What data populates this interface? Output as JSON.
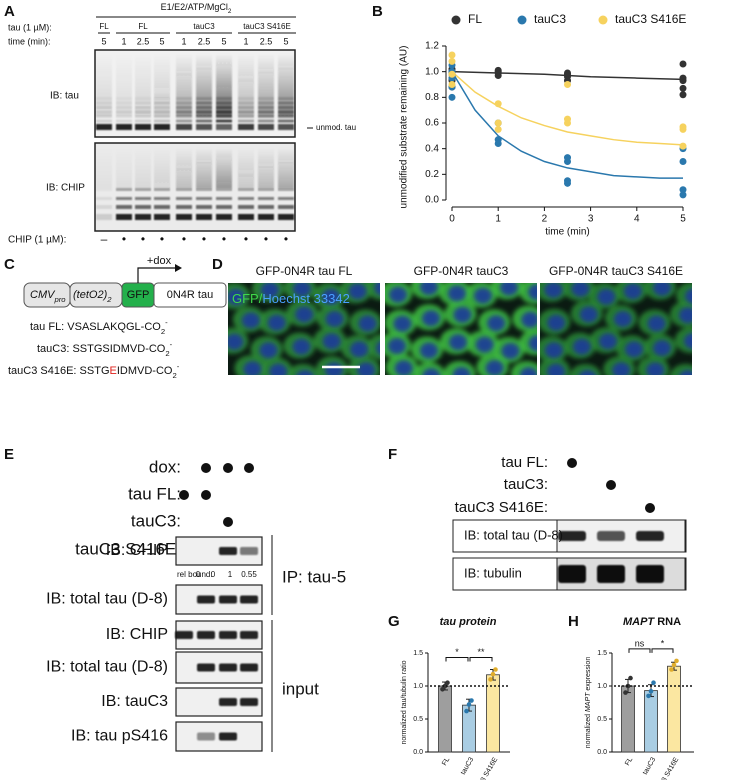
{
  "panel_labels": [
    "A",
    "B",
    "C",
    "D",
    "E",
    "F",
    "G",
    "H"
  ],
  "panel_a": {
    "header": "E1/E2/ATP/MgCl",
    "header_sub": "2",
    "row_labels": [
      "tau (1 µM):",
      "time (min):"
    ],
    "groups": [
      "FL",
      "FL",
      "tauC3",
      "tauC3 S416E"
    ],
    "times": [
      "5",
      "1",
      "2.5",
      "5",
      "1",
      "2.5",
      "5",
      "1",
      "2.5",
      "5"
    ],
    "blot_labels": [
      "IB: tau",
      "IB: CHIP"
    ],
    "band_label": "unmod. tau",
    "chip_label": "CHIP (1 µM):",
    "chip_marks": [
      "–",
      "•",
      "•",
      "•",
      "•",
      "•",
      "•",
      "•",
      "•",
      "•"
    ]
  },
  "panel_c": {
    "promoter": "CMV",
    "promoter_sub": "pro",
    "operator": "(tetO2)",
    "operator_sub": "2",
    "inducer": "+dox",
    "tag": "GFP",
    "gene": "0N4R tau",
    "sequences": [
      {
        "text": "tau FL: VSASLAKQGL-CO",
        "sub": "2",
        "sup": "-"
      },
      {
        "text": "tauC3: SSTGSIDMVD-CO",
        "sub": "2",
        "sup": "-"
      },
      {
        "text": "tauC3 S416E: SSTG",
        "mutation": "E",
        "rest": "IDMVD-CO",
        "sub": "2",
        "sup": "-"
      }
    ]
  },
  "panel_d": {
    "titles": [
      "GFP-0N4R tau FL",
      "GFP-0N4R tauC3",
      "GFP-0N4R tauC3 S416E"
    ],
    "stain_gfp": "GFP/",
    "stain_hoechst": "Hoechst 33342"
  },
  "panel_e": {
    "conditions": [
      {
        "label": "dox:",
        "marks": [
          false,
          true,
          true,
          true
        ]
      },
      {
        "label": "tau FL:",
        "marks": [
          true,
          true,
          false,
          false
        ]
      },
      {
        "label": "tauC3:",
        "marks": [
          false,
          false,
          true,
          false
        ]
      },
      {
        "label": "tauC3 S416E:",
        "marks": [
          false,
          false,
          false,
          true
        ]
      }
    ],
    "blots": [
      "IB: CHIP",
      "IB: total tau (D-8)",
      "IB: CHIP",
      "IB: total tau (D-8)",
      "IB: tauC3",
      "IB: tau pS416"
    ],
    "rel_bound_label": "rel bound:",
    "rel_bound": [
      0,
      0,
      1,
      0.55
    ],
    "brackets": [
      "IP: tau-5",
      "input"
    ]
  },
  "panel_f": {
    "conditions": [
      {
        "label": "tau FL:",
        "marks": [
          true,
          false,
          false
        ]
      },
      {
        "label": "tauC3:",
        "marks": [
          false,
          true,
          false
        ]
      },
      {
        "label": "tauC3 S416E:",
        "marks": [
          false,
          false,
          true
        ]
      }
    ],
    "blots": [
      "IB: total tau (D-8)",
      "IB: tubulin"
    ]
  },
  "chart_data": [
    {
      "type": "scatter",
      "ylabel": "unmodified substrate remaining (AU)",
      "xlabel": "time (min)",
      "xlim": [
        0,
        5
      ],
      "ylim": [
        0,
        1.2
      ],
      "xticks": [
        0,
        1,
        2,
        3,
        4,
        5
      ],
      "yticks": [
        {
          "value": 0,
          "label": "0.0"
        },
        {
          "value": 0.2,
          "label": "0.2"
        },
        {
          "value": 0.4,
          "label": "0.4"
        },
        {
          "value": 0.6,
          "label": "0.6"
        },
        {
          "value": 0.8,
          "label": "0.8"
        },
        {
          "value": 1,
          "label": "1.0"
        },
        {
          "value": 1.2,
          "label": "1.2"
        }
      ],
      "legend": "top",
      "series": [
        {
          "name": "FL",
          "color": "#333333",
          "x": [
            0,
            0,
            0,
            0,
            0,
            0,
            1,
            1,
            1,
            1,
            2.5,
            2.5,
            2.5,
            2.5,
            5,
            5,
            5,
            5,
            5
          ],
          "values": [
            0.88,
            0.93,
            0.95,
            0.98,
            1.0,
            1.02,
            0.97,
            0.99,
            1.0,
            1.01,
            0.93,
            0.96,
            0.98,
            0.99,
            0.82,
            0.87,
            0.93,
            0.95,
            1.06
          ]
        },
        {
          "name": "tauC3",
          "color": "#2a78ad",
          "x": [
            0,
            0,
            0,
            0,
            0,
            1,
            1,
            1,
            2.5,
            2.5,
            2.5,
            2.5,
            5,
            5,
            5,
            5
          ],
          "values": [
            0.8,
            0.88,
            0.95,
            1.0,
            1.05,
            0.44,
            0.47,
            0.6,
            0.13,
            0.15,
            0.3,
            0.33,
            0.04,
            0.08,
            0.3,
            0.4
          ]
        },
        {
          "name": "tauC3 S416E",
          "color": "#f6d25e",
          "x": [
            0,
            0,
            0,
            0,
            1,
            1,
            1,
            2.5,
            2.5,
            2.5,
            5,
            5,
            5
          ],
          "values": [
            0.9,
            0.98,
            1.08,
            1.13,
            0.55,
            0.6,
            0.75,
            0.6,
            0.63,
            0.9,
            0.42,
            0.55,
            0.57
          ]
        }
      ],
      "fits": [
        {
          "color": "#333333",
          "x": [
            0,
            1,
            2,
            3,
            4,
            5
          ],
          "values": [
            1.0,
            0.99,
            0.98,
            0.96,
            0.95,
            0.94
          ]
        },
        {
          "color": "#2a78ad",
          "x": [
            0,
            0.5,
            1,
            1.5,
            2,
            2.5,
            3,
            3.5,
            4,
            4.5,
            5
          ],
          "values": [
            1.0,
            0.7,
            0.5,
            0.38,
            0.3,
            0.25,
            0.22,
            0.19,
            0.18,
            0.17,
            0.17
          ]
        },
        {
          "color": "#f6d25e",
          "x": [
            0,
            0.5,
            1,
            1.5,
            2,
            2.5,
            3,
            3.5,
            4,
            4.5,
            5
          ],
          "values": [
            1.0,
            0.84,
            0.73,
            0.64,
            0.58,
            0.53,
            0.5,
            0.47,
            0.45,
            0.44,
            0.43
          ]
        }
      ]
    },
    {
      "type": "bar",
      "title": "tau protein",
      "ylabel": "normalized tau/tubulin ratio",
      "categories": [
        "FL",
        "tauC3",
        "tauC3 S416E"
      ],
      "values": [
        1.0,
        0.71,
        1.17
      ],
      "errors": [
        0.06,
        0.09,
        0.08
      ],
      "points": [
        [
          0.95,
          1.0,
          1.05
        ],
        [
          0.62,
          0.72,
          0.78
        ],
        [
          1.1,
          1.18,
          1.25
        ]
      ],
      "colors": [
        "#9e9e9e",
        "#a9cde3",
        "#fbe7a1"
      ],
      "point_colors": [
        "#333333",
        "#2a78ad",
        "#e0ad2c"
      ],
      "ylim": [
        0,
        1.5
      ],
      "yticks": [
        {
          "value": 0,
          "label": "0.0"
        },
        {
          "value": 0.5,
          "label": "0.5"
        },
        {
          "value": 1,
          "label": "1.0"
        },
        {
          "value": 1.5,
          "label": "1.5"
        }
      ],
      "reference_line": 1,
      "comparisons": [
        {
          "label": "*",
          "pair": [
            0,
            1
          ]
        },
        {
          "label": "**",
          "pair": [
            1,
            2
          ]
        }
      ]
    },
    {
      "type": "bar",
      "title": [
        "MAPT",
        " RNA"
      ],
      "ylabel": [
        "normalized ",
        "MAPT",
        " expression"
      ],
      "categories": [
        "FL",
        "tauC3",
        "tauC3 S416E"
      ],
      "values": [
        1.0,
        0.93,
        1.3
      ],
      "errors": [
        0.1,
        0.09,
        0.06
      ],
      "points": [
        [
          0.9,
          1.0,
          1.12
        ],
        [
          0.85,
          0.92,
          1.05
        ],
        [
          1.25,
          1.32,
          1.38
        ]
      ],
      "colors": [
        "#9e9e9e",
        "#a9cde3",
        "#fbe7a1"
      ],
      "point_colors": [
        "#333333",
        "#2a78ad",
        "#e0ad2c"
      ],
      "ylim": [
        0,
        1.5
      ],
      "yticks": [
        {
          "value": 0,
          "label": "0.0"
        },
        {
          "value": 0.5,
          "label": "0.5"
        },
        {
          "value": 1,
          "label": "1.0"
        },
        {
          "value": 1.5,
          "label": "1.5"
        }
      ],
      "reference_line": 1,
      "comparisons": [
        {
          "label": "ns",
          "pair": [
            0,
            1
          ]
        },
        {
          "label": "*",
          "pair": [
            1,
            2
          ]
        }
      ]
    }
  ]
}
